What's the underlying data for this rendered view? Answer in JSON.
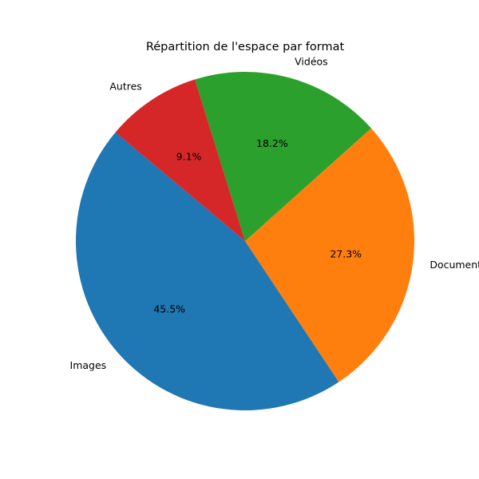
{
  "chart_data": {
    "type": "pie",
    "title": "Répartition de l'espace par format",
    "start_angle_deg": 140,
    "direction": "counterclockwise",
    "slices": [
      {
        "label": "Images",
        "value": 45.5,
        "percent_label": "45.5%",
        "color": "#1f77b4"
      },
      {
        "label": "Documents",
        "value": 27.3,
        "percent_label": "27.3%",
        "color": "#ff7f0e"
      },
      {
        "label": "Vidéos",
        "value": 18.2,
        "percent_label": "18.2%",
        "color": "#2ca02c"
      },
      {
        "label": "Autres",
        "value": 9.1,
        "percent_label": "9.1%",
        "color": "#d62728"
      }
    ]
  }
}
